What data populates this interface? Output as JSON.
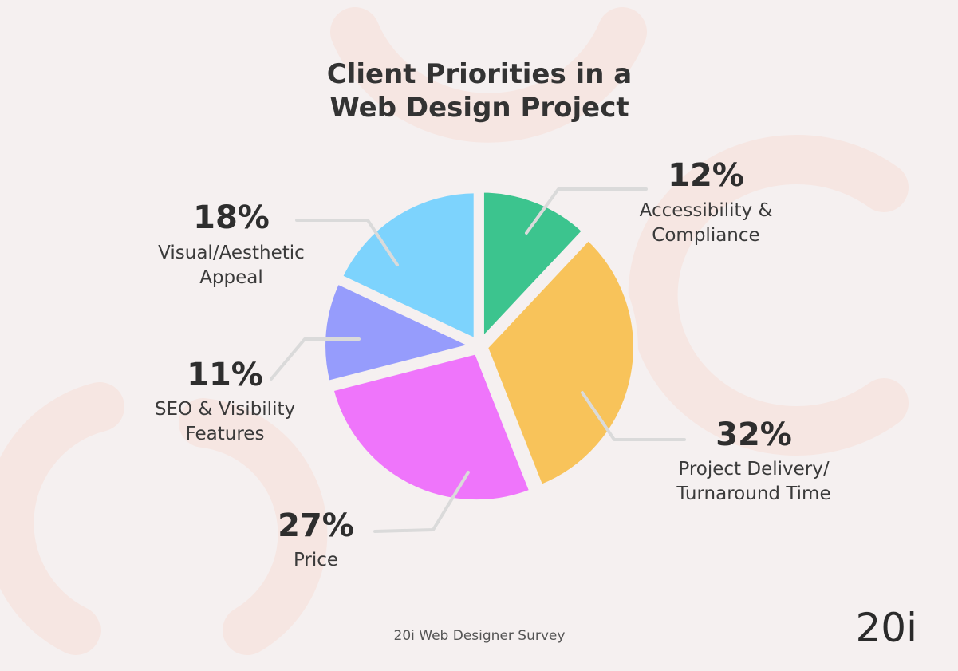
{
  "chart_data": {
    "type": "pie",
    "title_lines": [
      "Client Priorities in a",
      "Web Design Project"
    ],
    "slices": [
      {
        "key": "accessibility",
        "pct_text": "12%",
        "value": 12,
        "label_lines": [
          "Accessibility &",
          "Compliance"
        ],
        "color": "#3cc48e"
      },
      {
        "key": "delivery",
        "pct_text": "32%",
        "value": 32,
        "label_lines": [
          "Project Delivery/",
          "Turnaround Time"
        ],
        "color": "#f8c35a"
      },
      {
        "key": "price",
        "pct_text": "27%",
        "value": 27,
        "label_lines": [
          "Price"
        ],
        "color": "#ef75fb"
      },
      {
        "key": "seo",
        "pct_text": "11%",
        "value": 11,
        "label_lines": [
          "SEO & Visibility",
          "Features"
        ],
        "color": "#969cfc"
      },
      {
        "key": "visual",
        "pct_text": "18%",
        "value": 18,
        "label_lines": [
          "Visual/Aesthetic",
          "Appeal"
        ],
        "color": "#7dd3fd"
      }
    ]
  },
  "footer": {
    "source": "20i Web Designer Survey"
  },
  "brand": {
    "logo_text": "20i",
    "accent": "#f6e6e2"
  }
}
